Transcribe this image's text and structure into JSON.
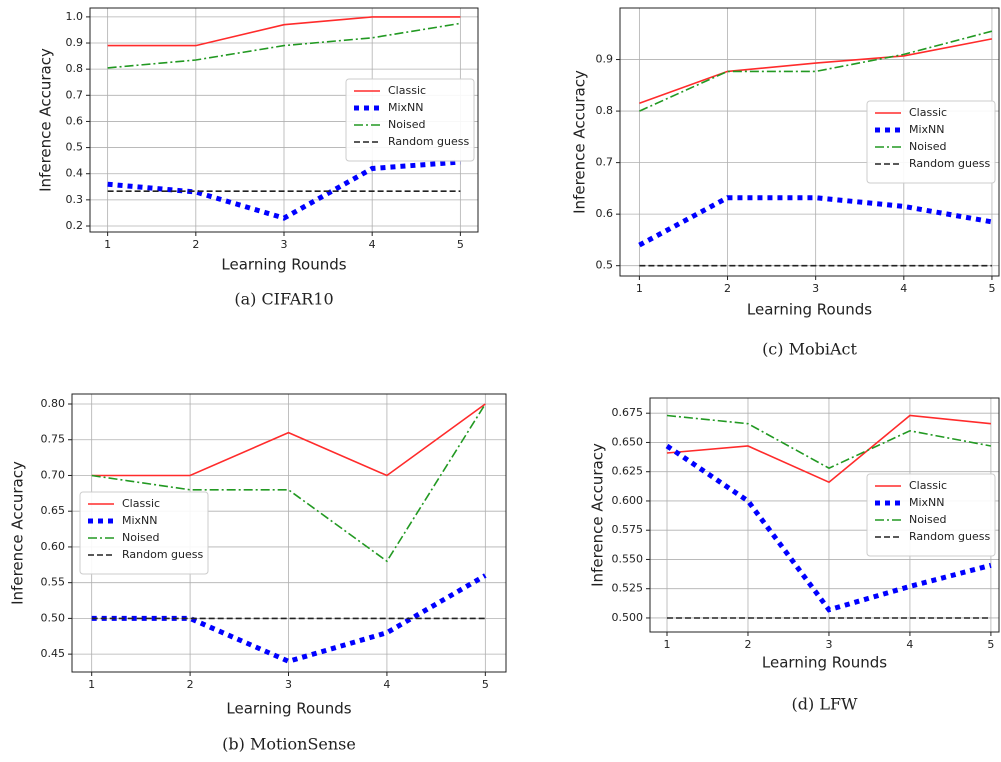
{
  "chart_data": [
    {
      "type": "line",
      "caption": "(a) CIFAR10",
      "xlabel": "Learning Rounds",
      "ylabel": "Inference Accuracy",
      "x": [
        1,
        2,
        3,
        4,
        5
      ],
      "xlim": [
        0.8,
        5.2
      ],
      "xticks": [
        1,
        2,
        3,
        4,
        5
      ],
      "ylim": [
        0.177,
        1.034
      ],
      "yticks": [
        0.2,
        0.3,
        0.4,
        0.5,
        0.6,
        0.7,
        0.8,
        0.9,
        {
          "value": 1,
          "label": "1.0"
        }
      ],
      "grid": true,
      "legend": "center right",
      "series": [
        {
          "name": "Classic",
          "color": "#ff2b2b",
          "linestyle": "solid",
          "values": [
            0.89,
            0.89,
            0.97,
            1.0,
            1.0
          ]
        },
        {
          "name": "MixNN",
          "color": "#0000ff",
          "linestyle": "dotted",
          "values": [
            0.36,
            0.33,
            0.23,
            0.42,
            0.445
          ]
        },
        {
          "name": "Noised",
          "color": "#229922",
          "linestyle": "dashdot",
          "values": [
            0.805,
            0.835,
            0.89,
            0.92,
            0.975
          ]
        },
        {
          "name": "Random guess",
          "color": "#222222",
          "linestyle": "dashed",
          "values": [
            0.333,
            0.333,
            0.333,
            0.333,
            0.333
          ]
        }
      ]
    },
    {
      "type": "line",
      "caption": "(b) MotionSense",
      "xlabel": "Learning Rounds",
      "ylabel": "Inference Accuracy",
      "x": [
        1,
        2,
        3,
        4,
        5
      ],
      "xlim": [
        0.8,
        5.21
      ],
      "xticks": [
        1,
        2,
        3,
        4,
        5
      ],
      "ylim": [
        0.425,
        0.814
      ],
      "yticks": [
        0.45,
        {
          "value": 0.5,
          "label": "0.50"
        },
        0.55,
        {
          "value": 0.6,
          "label": "0.60"
        },
        0.65,
        {
          "value": 0.7,
          "label": "0.70"
        },
        0.75,
        {
          "value": 0.8,
          "label": "0.80"
        }
      ],
      "grid": true,
      "legend": "center left",
      "series": [
        {
          "name": "Classic",
          "color": "#ff2b2b",
          "linestyle": "solid",
          "values": [
            0.7,
            0.7,
            0.76,
            0.7,
            0.8
          ]
        },
        {
          "name": "MixNN",
          "color": "#0000ff",
          "linestyle": "dotted",
          "values": [
            0.5,
            0.5,
            0.44,
            0.48,
            0.56
          ]
        },
        {
          "name": "Noised",
          "color": "#229922",
          "linestyle": "dashdot",
          "values": [
            0.7,
            0.68,
            0.68,
            0.58,
            0.8
          ]
        },
        {
          "name": "Random guess",
          "color": "#222222",
          "linestyle": "dashed",
          "values": [
            0.5,
            0.5,
            0.5,
            0.5,
            0.5
          ]
        }
      ]
    },
    {
      "type": "line",
      "caption": "(c) MobiAct",
      "xlabel": "Learning Rounds",
      "ylabel": "Inference Accuracy",
      "x": [
        1,
        2,
        3,
        4,
        5
      ],
      "xlim": [
        0.78,
        5.08
      ],
      "xticks": [
        1,
        2,
        3,
        4,
        5
      ],
      "ylim": [
        0.48,
        1.0
      ],
      "yticks": [
        0.5,
        0.6,
        0.7,
        0.8,
        0.9
      ],
      "grid": true,
      "legend": "center right",
      "series": [
        {
          "name": "Classic",
          "color": "#ff2b2b",
          "linestyle": "solid",
          "values": [
            0.815,
            0.877,
            0.893,
            0.907,
            0.94
          ]
        },
        {
          "name": "MixNN",
          "color": "#0000ff",
          "linestyle": "dotted",
          "values": [
            0.54,
            0.632,
            0.632,
            0.615,
            0.585
          ]
        },
        {
          "name": "Noised",
          "color": "#229922",
          "linestyle": "dashdot",
          "values": [
            0.8,
            0.877,
            0.877,
            0.91,
            0.955
          ]
        },
        {
          "name": "Random guess",
          "color": "#222222",
          "linestyle": "dashed",
          "values": [
            0.5,
            0.5,
            0.5,
            0.5,
            0.5
          ]
        }
      ]
    },
    {
      "type": "line",
      "caption": "(d) LFW",
      "xlabel": "Learning Rounds",
      "ylabel": "Inference Accuracy",
      "x": [
        1,
        2,
        3,
        4,
        5
      ],
      "xlim": [
        0.79,
        5.1
      ],
      "xticks": [
        1,
        2,
        3,
        4,
        5
      ],
      "ylim": [
        0.488,
        0.688
      ],
      "yticks": [
        {
          "value": 0.5,
          "label": "0.500"
        },
        0.525,
        {
          "value": 0.55,
          "label": "0.550"
        },
        0.575,
        {
          "value": 0.6,
          "label": "0.600"
        },
        0.625,
        {
          "value": 0.65,
          "label": "0.650"
        },
        0.675
      ],
      "grid": true,
      "legend": "center right",
      "series": [
        {
          "name": "Classic",
          "color": "#ff2b2b",
          "linestyle": "solid",
          "values": [
            0.641,
            0.647,
            0.616,
            0.673,
            0.666
          ]
        },
        {
          "name": "MixNN",
          "color": "#0000ff",
          "linestyle": "dotted",
          "values": [
            0.647,
            0.6,
            0.507,
            0.527,
            0.545
          ]
        },
        {
          "name": "Noised",
          "color": "#229922",
          "linestyle": "dashdot",
          "values": [
            0.673,
            0.666,
            0.628,
            0.66,
            0.647
          ]
        },
        {
          "name": "Random guess",
          "color": "#222222",
          "linestyle": "dashed",
          "values": [
            0.5,
            0.5,
            0.5,
            0.5,
            0.5
          ]
        }
      ]
    }
  ]
}
